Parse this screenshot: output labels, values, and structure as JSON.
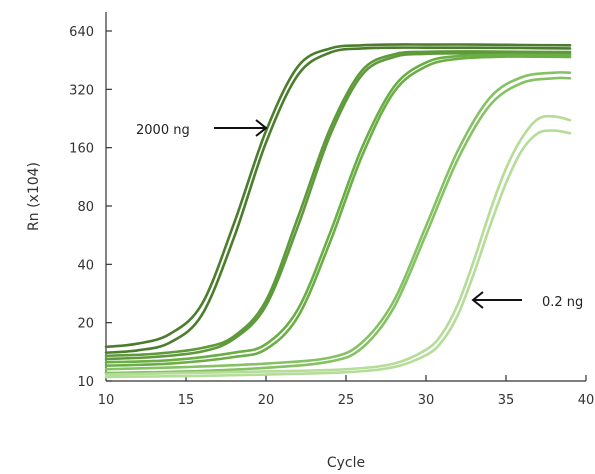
{
  "chart_data": {
    "type": "line",
    "title": "",
    "xlabel": "Cycle",
    "ylabel": "Rn (x104)",
    "xlim": [
      10,
      40
    ],
    "ylim": [
      10,
      640
    ],
    "y_scale": "log2",
    "grid": false,
    "legend": "none",
    "x_ticks": [
      10,
      15,
      20,
      25,
      30,
      35,
      40
    ],
    "y_ticks": [
      10,
      20,
      40,
      80,
      160,
      320,
      640
    ],
    "series": [
      {
        "color": "#4b7d2d",
        "x": [
          10,
          12,
          14,
          16,
          18,
          20,
          22,
          24,
          26,
          28,
          30,
          33,
          36,
          39
        ],
        "y": [
          15,
          15.6,
          17.5,
          25,
          65,
          195,
          420,
          520,
          540,
          545,
          545,
          545,
          542,
          540
        ]
      },
      {
        "color": "#4b7d2d",
        "x": [
          10,
          12,
          14,
          16,
          18,
          20,
          22,
          24,
          26,
          28,
          30,
          33,
          36,
          39
        ],
        "y": [
          14,
          14.4,
          15.8,
          22,
          55,
          170,
          380,
          495,
          520,
          525,
          525,
          525,
          523,
          520
        ]
      },
      {
        "color": "#5e9a3a",
        "x": [
          10,
          13,
          16,
          18,
          20,
          22,
          24,
          26,
          28,
          30,
          33,
          36,
          39
        ],
        "y": [
          13.5,
          13.8,
          14.8,
          17,
          26,
          70,
          200,
          400,
          485,
          500,
          502,
          500,
          498
        ]
      },
      {
        "color": "#5e9a3a",
        "x": [
          10,
          13,
          16,
          18,
          20,
          22,
          24,
          26,
          28,
          30,
          33,
          36,
          39
        ],
        "y": [
          13,
          13.3,
          14.2,
          16.5,
          24.5,
          63,
          185,
          380,
          470,
          488,
          492,
          490,
          488
        ]
      },
      {
        "color": "#6aae45",
        "x": [
          10,
          14,
          18,
          20,
          22,
          24,
          26,
          28,
          30,
          32,
          35,
          39
        ],
        "y": [
          12.5,
          12.8,
          14,
          15.5,
          23.5,
          58,
          160,
          330,
          440,
          475,
          482,
          480
        ]
      },
      {
        "color": "#6aae45",
        "x": [
          10,
          14,
          18,
          20,
          22,
          24,
          26,
          28,
          30,
          32,
          35,
          39
        ],
        "y": [
          12,
          12.3,
          13.3,
          14.6,
          21.5,
          52,
          145,
          310,
          420,
          460,
          472,
          470
        ]
      },
      {
        "color": "#85c263",
        "x": [
          10,
          15,
          20,
          24,
          26,
          28,
          30,
          32,
          34,
          36,
          38,
          39
        ],
        "y": [
          11.5,
          11.8,
          12.3,
          13.2,
          15.8,
          26,
          63,
          155,
          290,
          370,
          390,
          390
        ]
      },
      {
        "color": "#85c263",
        "x": [
          10,
          15,
          20,
          24,
          26,
          28,
          30,
          32,
          34,
          36,
          38,
          39
        ],
        "y": [
          11,
          11.2,
          11.7,
          12.6,
          14.8,
          24,
          57,
          140,
          265,
          345,
          365,
          365
        ]
      },
      {
        "color": "#b5dc98",
        "x": [
          10,
          15,
          20,
          25,
          28,
          30,
          31,
          32,
          33,
          34,
          35,
          36,
          37,
          38,
          39
        ],
        "y": [
          10.8,
          11,
          11.2,
          11.5,
          12.3,
          14.5,
          17.5,
          25,
          42,
          75,
          125,
          180,
          225,
          232,
          222
        ]
      },
      {
        "color": "#b5dc98",
        "x": [
          10,
          15,
          20,
          25,
          28,
          30,
          31,
          32,
          33,
          34,
          35,
          36,
          37,
          38,
          39
        ],
        "y": [
          10.5,
          10.6,
          10.8,
          11.1,
          11.8,
          13.6,
          16,
          22,
          36,
          63,
          105,
          155,
          190,
          196,
          190
        ]
      }
    ],
    "annotations": [
      {
        "text": "2000 ng",
        "points_to": {
          "x": 20,
          "y": 200
        }
      },
      {
        "text": "0.2 ng",
        "points_to": {
          "x": 32,
          "y": 28
        }
      }
    ]
  }
}
